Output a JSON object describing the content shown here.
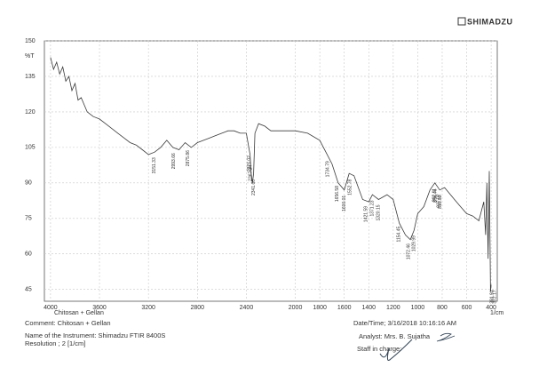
{
  "header": {
    "brand": "SHIMADZU"
  },
  "chart_data": {
    "type": "line",
    "y_label": "%T",
    "x_label": "1/cm",
    "sample_label": "Chitosan + Gellan",
    "color": "#3a3a3a",
    "grid": true,
    "xlim": [
      4050,
      350
    ],
    "ylim": [
      40,
      150
    ],
    "xticks": [
      4000,
      3600,
      3200,
      2800,
      2400,
      2000,
      1800,
      1600,
      1400,
      1200,
      1000,
      800,
      600,
      400
    ],
    "yticks": [
      45,
      60,
      75,
      90,
      105,
      120,
      135,
      150
    ],
    "x": [
      4000,
      3975,
      3950,
      3925,
      3900,
      3875,
      3850,
      3825,
      3800,
      3775,
      3750,
      3700,
      3650,
      3600,
      3550,
      3500,
      3450,
      3400,
      3350,
      3300,
      3250,
      3200,
      3150,
      3100,
      3050,
      3000,
      2950,
      2900,
      2850,
      2800,
      2750,
      2700,
      2650,
      2600,
      2550,
      2500,
      2450,
      2400,
      2370,
      2360,
      2350,
      2341,
      2330,
      2300,
      2250,
      2200,
      2100,
      2000,
      1900,
      1800,
      1750,
      1700,
      1650,
      1600,
      1560,
      1520,
      1450,
      1400,
      1370,
      1320,
      1250,
      1200,
      1150,
      1100,
      1060,
      1030,
      1000,
      950,
      900,
      860,
      820,
      780,
      700,
      650,
      600,
      550,
      500,
      460,
      445,
      435,
      425,
      415,
      405,
      400
    ],
    "values": [
      143,
      138,
      141,
      136,
      139,
      133,
      135,
      129,
      132,
      125,
      126,
      120,
      118,
      117,
      115,
      113,
      111,
      109,
      107,
      106,
      104,
      102,
      103,
      105,
      108,
      105,
      104,
      107,
      105,
      107,
      108,
      109,
      110,
      111,
      112,
      112,
      111,
      111,
      102,
      94,
      90,
      94,
      111,
      115,
      114,
      112,
      112,
      112,
      111,
      108,
      103,
      98,
      90,
      87,
      94,
      93,
      83,
      82,
      85,
      83,
      85,
      83,
      73,
      68,
      66,
      70,
      77,
      80,
      87,
      90,
      87,
      88,
      83,
      80,
      77,
      76,
      74,
      82,
      68,
      90,
      58,
      95,
      44,
      47
    ],
    "peaks": [
      3151.33,
      2875.86,
      2993.66,
      2367.24,
      2376.02,
      2341.66,
      1734.79,
      1656.58,
      1600.01,
      1552.78,
      1421.59,
      1371.23,
      1320.15,
      1154.45,
      1072.46,
      1029.99,
      862.11,
      856.46,
      827.02,
      815.92,
      391.91,
      372.17
    ]
  },
  "footer": {
    "comment": "Comment: Chitosan + Gellan",
    "instrument": "Name of the Instrument: Shimadzu FTIR 8400S",
    "resolution": "Resolution ;   2 [1/cm]",
    "datetime": "Date/Time; 3/16/2018 10:16:16 AM",
    "analyst": "Analyst: Mrs. B. Sujatha",
    "staff": "Staff in charge:"
  }
}
